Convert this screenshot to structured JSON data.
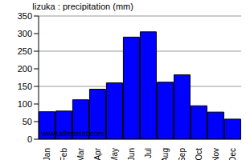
{
  "chart_data": {
    "type": "bar",
    "title": "Iizuka : precipitation (mm)",
    "categories": [
      "Jan",
      "Feb",
      "Mar",
      "Apr",
      "May",
      "Jun",
      "Jul",
      "Aug",
      "Sep",
      "Oct",
      "Nov",
      "Dec"
    ],
    "values": [
      78,
      80,
      112,
      142,
      160,
      290,
      305,
      162,
      183,
      95,
      77,
      57
    ],
    "color": "#0000ff",
    "ylim": [
      0,
      350
    ],
    "yticks": [
      0,
      50,
      100,
      150,
      200,
      250,
      300,
      350
    ],
    "grid": true,
    "annotations": [
      "www.allmetsat.com"
    ]
  }
}
